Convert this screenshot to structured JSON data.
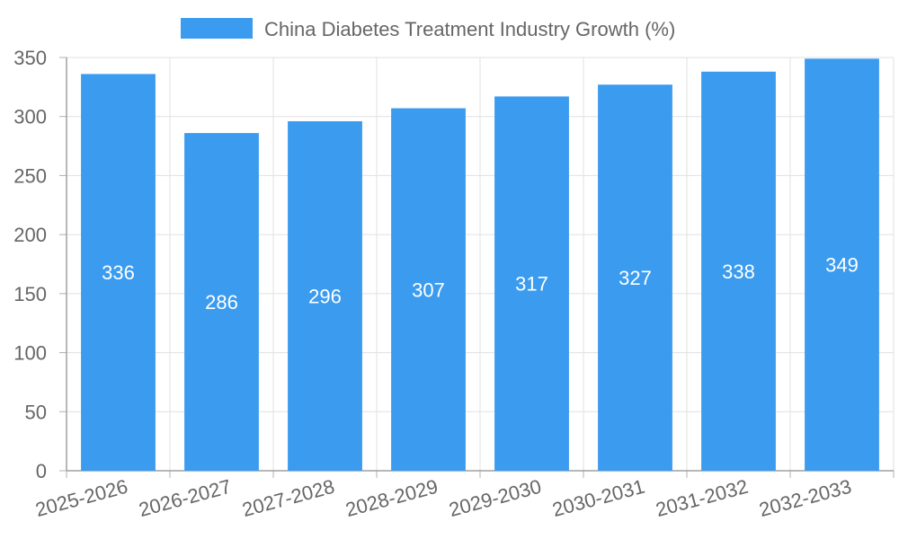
{
  "chart_data": {
    "type": "bar",
    "categories": [
      "2025-2026",
      "2026-2027",
      "2027-2028",
      "2028-2029",
      "2029-2030",
      "2030-2031",
      "2031-2032",
      "2032-2033"
    ],
    "series": [
      {
        "name": "China Diabetes Treatment Industry Growth (%)",
        "values": [
          336,
          286,
          296,
          307,
          317,
          327,
          338,
          349
        ],
        "color": "#3a9bef"
      }
    ],
    "ylim": [
      0,
      350
    ],
    "yticks": [
      0,
      50,
      100,
      150,
      200,
      250,
      300,
      350
    ],
    "grid": true,
    "legend_position": "top-center",
    "data_labels": true
  }
}
